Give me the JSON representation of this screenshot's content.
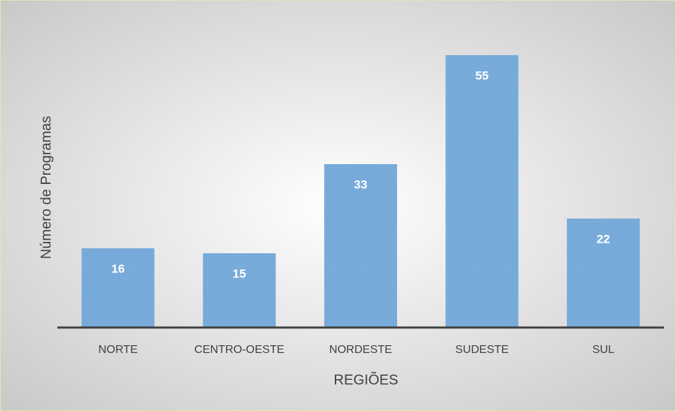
{
  "chart_data": {
    "type": "bar",
    "categories": [
      "NORTE",
      "CENTRO-OESTE",
      "NORDESTE",
      "SUDESTE",
      "SUL"
    ],
    "values": [
      16,
      15,
      33,
      55,
      22
    ],
    "color": "#5b9bd5",
    "ylim": [
      0,
      64
    ],
    "x_label": "REGIÕES",
    "y_label": "Número de Programas"
  }
}
